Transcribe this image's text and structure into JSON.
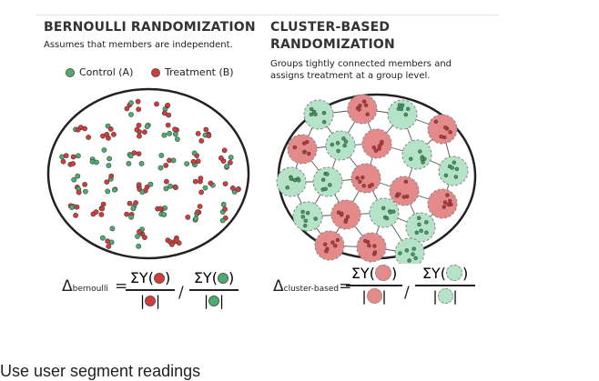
{
  "bernoulli": {
    "title": "BERNOULLI RANDOMIZATION",
    "subtitle": "Assumes that members are independent.",
    "legend_control": "Control (A)",
    "legend_treatment": "Treatment (B)",
    "formula_delta": "Δ",
    "formula_sub": "bernoulli",
    "formula_eq": "=",
    "num_text": "ΣY(",
    "close_paren": ")",
    "slash": "/",
    "den_bar": "|",
    "colors": {
      "control": "#4cae6e",
      "treatment": "#d43b3b"
    }
  },
  "cluster": {
    "title_line1": "CLUSTER-BASED",
    "title_line2": "RANDOMIZATION",
    "subtitle_line1": "Groups tightly connected members and",
    "subtitle_line2": "assigns treatment at a group level.",
    "formula_delta": "Δ",
    "formula_sub": "cluster-based",
    "formula_eq": "=",
    "num_text": "ΣY(",
    "close_paren": ")",
    "slash": "/",
    "den_bar": "|",
    "colors": {
      "control_fill": "#b5e3c7",
      "treatment_fill": "#e58a8a"
    }
  },
  "caption": "Use user segment readings"
}
